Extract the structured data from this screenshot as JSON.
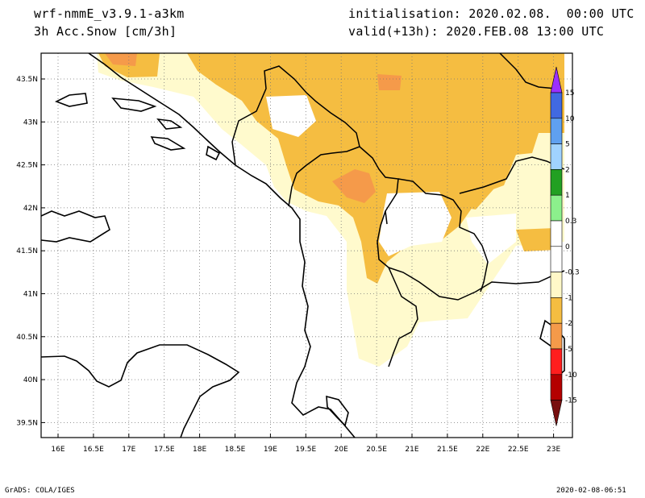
{
  "header": {
    "model": "wrf-nmmE_v3.9.1-a3km",
    "field": "3h Acc.Snow [cm/3h]",
    "init": "initialisation: 2020.02.08.  00:00 UTC",
    "valid": "valid(+13h): 2020.FEB.08 13:00 UTC"
  },
  "axes": {
    "lat_ticks": [
      "43.5N",
      "43N",
      "42.5N",
      "42N",
      "41.5N",
      "41N",
      "40.5N",
      "40N",
      "39.5N"
    ],
    "lon_ticks": [
      "16E",
      "16.5E",
      "17E",
      "17.5E",
      "18E",
      "18.5E",
      "19E",
      "19.5E",
      "20E",
      "20.5E",
      "21E",
      "21.5E",
      "22E",
      "22.5E",
      "23E"
    ]
  },
  "colorbar": {
    "labels": [
      "15",
      "10",
      "5",
      "2",
      "1",
      "0.3",
      "0",
      "-0.3",
      "-1",
      "-2",
      "-5",
      "-10",
      "-15"
    ],
    "colors": [
      "#9b30ff",
      "#4169e1",
      "#5fa0f0",
      "#a0d2ff",
      "#22a022",
      "#8cf08c",
      "#ffffff",
      "#ffffff",
      "#fff8c8",
      "#f5bd41",
      "#f59a4a",
      "#ff1e1e",
      "#b40000",
      "#781010"
    ]
  },
  "footer": {
    "left": "GrADS: COLA/IGES",
    "right": "2020-02-08-06:51"
  },
  "colors": {
    "light_fill": "#fffacd",
    "mid_fill": "#f5bd41",
    "dark_fill": "#f59a4a",
    "line": "#000000"
  }
}
